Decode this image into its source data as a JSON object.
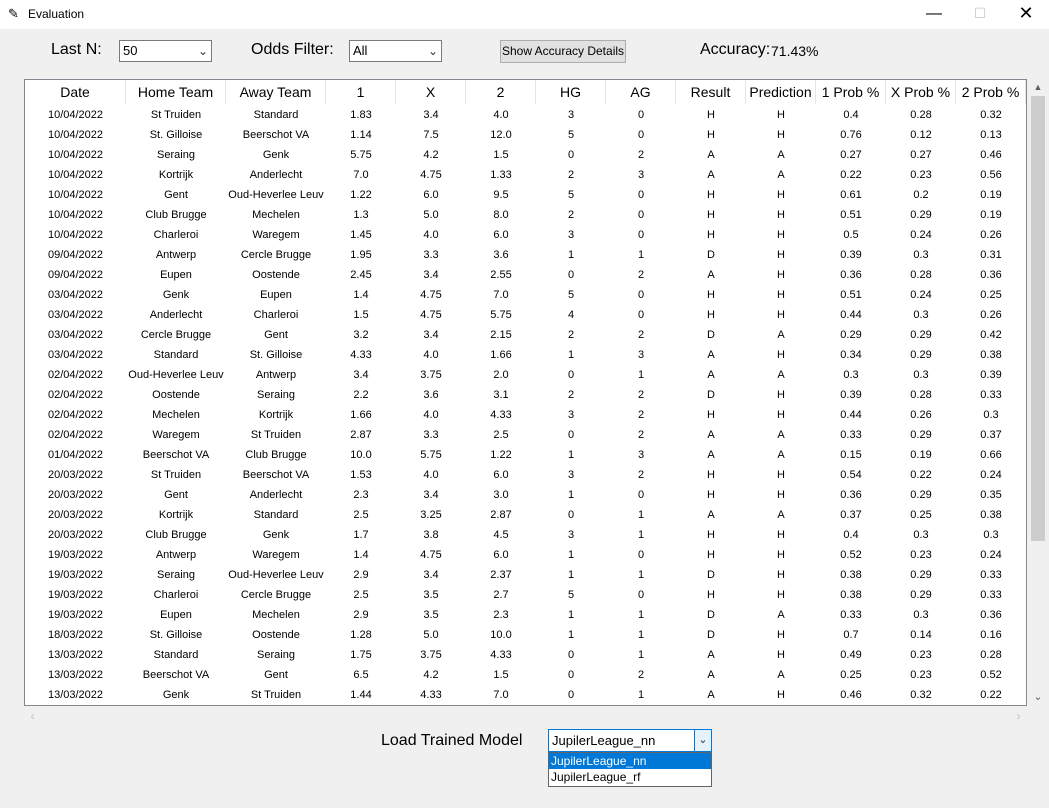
{
  "window": {
    "title": "Evaluation",
    "minimize": "—",
    "maximize": "☐",
    "close": "✕"
  },
  "controls": {
    "last_n_label": "Last N:",
    "last_n_value": "50",
    "odds_filter_label": "Odds Filter:",
    "odds_filter_value": "All",
    "accuracy_button": "Show Accuracy Details",
    "accuracy_label": "Accuracy:",
    "accuracy_value": "71.43%"
  },
  "table": {
    "columns": [
      "Date",
      "Home Team",
      "Away Team",
      "1",
      "X",
      "2",
      "HG",
      "AG",
      "Result",
      "Prediction",
      "1 Prob %",
      "X Prob %",
      "2 Prob %"
    ],
    "rows": [
      [
        "10/04/2022",
        "St Truiden",
        "Standard",
        "1.83",
        "3.4",
        "4.0",
        "3",
        "0",
        "H",
        "H",
        "0.4",
        "0.28",
        "0.32"
      ],
      [
        "10/04/2022",
        "St. Gilloise",
        "Beerschot VA",
        "1.14",
        "7.5",
        "12.0",
        "5",
        "0",
        "H",
        "H",
        "0.76",
        "0.12",
        "0.13"
      ],
      [
        "10/04/2022",
        "Seraing",
        "Genk",
        "5.75",
        "4.2",
        "1.5",
        "0",
        "2",
        "A",
        "A",
        "0.27",
        "0.27",
        "0.46"
      ],
      [
        "10/04/2022",
        "Kortrijk",
        "Anderlecht",
        "7.0",
        "4.75",
        "1.33",
        "2",
        "3",
        "A",
        "A",
        "0.22",
        "0.23",
        "0.56"
      ],
      [
        "10/04/2022",
        "Gent",
        "Oud-Heverlee Leuv",
        "1.22",
        "6.0",
        "9.5",
        "5",
        "0",
        "H",
        "H",
        "0.61",
        "0.2",
        "0.19"
      ],
      [
        "10/04/2022",
        "Club Brugge",
        "Mechelen",
        "1.3",
        "5.0",
        "8.0",
        "2",
        "0",
        "H",
        "H",
        "0.51",
        "0.29",
        "0.19"
      ],
      [
        "10/04/2022",
        "Charleroi",
        "Waregem",
        "1.45",
        "4.0",
        "6.0",
        "3",
        "0",
        "H",
        "H",
        "0.5",
        "0.24",
        "0.26"
      ],
      [
        "09/04/2022",
        "Antwerp",
        "Cercle Brugge",
        "1.95",
        "3.3",
        "3.6",
        "1",
        "1",
        "D",
        "H",
        "0.39",
        "0.3",
        "0.31"
      ],
      [
        "09/04/2022",
        "Eupen",
        "Oostende",
        "2.45",
        "3.4",
        "2.55",
        "0",
        "2",
        "A",
        "H",
        "0.36",
        "0.28",
        "0.36"
      ],
      [
        "03/04/2022",
        "Genk",
        "Eupen",
        "1.4",
        "4.75",
        "7.0",
        "5",
        "0",
        "H",
        "H",
        "0.51",
        "0.24",
        "0.25"
      ],
      [
        "03/04/2022",
        "Anderlecht",
        "Charleroi",
        "1.5",
        "4.75",
        "5.75",
        "4",
        "0",
        "H",
        "H",
        "0.44",
        "0.3",
        "0.26"
      ],
      [
        "03/04/2022",
        "Cercle Brugge",
        "Gent",
        "3.2",
        "3.4",
        "2.15",
        "2",
        "2",
        "D",
        "A",
        "0.29",
        "0.29",
        "0.42"
      ],
      [
        "03/04/2022",
        "Standard",
        "St. Gilloise",
        "4.33",
        "4.0",
        "1.66",
        "1",
        "3",
        "A",
        "H",
        "0.34",
        "0.29",
        "0.38"
      ],
      [
        "02/04/2022",
        "Oud-Heverlee Leuv",
        "Antwerp",
        "3.4",
        "3.75",
        "2.0",
        "0",
        "1",
        "A",
        "A",
        "0.3",
        "0.3",
        "0.39"
      ],
      [
        "02/04/2022",
        "Oostende",
        "Seraing",
        "2.2",
        "3.6",
        "3.1",
        "2",
        "2",
        "D",
        "H",
        "0.39",
        "0.28",
        "0.33"
      ],
      [
        "02/04/2022",
        "Mechelen",
        "Kortrijk",
        "1.66",
        "4.0",
        "4.33",
        "3",
        "2",
        "H",
        "H",
        "0.44",
        "0.26",
        "0.3"
      ],
      [
        "02/04/2022",
        "Waregem",
        "St Truiden",
        "2.87",
        "3.3",
        "2.5",
        "0",
        "2",
        "A",
        "A",
        "0.33",
        "0.29",
        "0.37"
      ],
      [
        "01/04/2022",
        "Beerschot VA",
        "Club Brugge",
        "10.0",
        "5.75",
        "1.22",
        "1",
        "3",
        "A",
        "A",
        "0.15",
        "0.19",
        "0.66"
      ],
      [
        "20/03/2022",
        "St Truiden",
        "Beerschot VA",
        "1.53",
        "4.0",
        "6.0",
        "3",
        "2",
        "H",
        "H",
        "0.54",
        "0.22",
        "0.24"
      ],
      [
        "20/03/2022",
        "Gent",
        "Anderlecht",
        "2.3",
        "3.4",
        "3.0",
        "1",
        "0",
        "H",
        "H",
        "0.36",
        "0.29",
        "0.35"
      ],
      [
        "20/03/2022",
        "Kortrijk",
        "Standard",
        "2.5",
        "3.25",
        "2.87",
        "0",
        "1",
        "A",
        "A",
        "0.37",
        "0.25",
        "0.38"
      ],
      [
        "20/03/2022",
        "Club Brugge",
        "Genk",
        "1.7",
        "3.8",
        "4.5",
        "3",
        "1",
        "H",
        "H",
        "0.4",
        "0.3",
        "0.3"
      ],
      [
        "19/03/2022",
        "Antwerp",
        "Waregem",
        "1.4",
        "4.75",
        "6.0",
        "1",
        "0",
        "H",
        "H",
        "0.52",
        "0.23",
        "0.24"
      ],
      [
        "19/03/2022",
        "Seraing",
        "Oud-Heverlee Leuv",
        "2.9",
        "3.4",
        "2.37",
        "1",
        "1",
        "D",
        "H",
        "0.38",
        "0.29",
        "0.33"
      ],
      [
        "19/03/2022",
        "Charleroi",
        "Cercle Brugge",
        "2.5",
        "3.5",
        "2.7",
        "5",
        "0",
        "H",
        "H",
        "0.38",
        "0.29",
        "0.33"
      ],
      [
        "19/03/2022",
        "Eupen",
        "Mechelen",
        "2.9",
        "3.5",
        "2.3",
        "1",
        "1",
        "D",
        "A",
        "0.33",
        "0.3",
        "0.36"
      ],
      [
        "18/03/2022",
        "St. Gilloise",
        "Oostende",
        "1.28",
        "5.0",
        "10.0",
        "1",
        "1",
        "D",
        "H",
        "0.7",
        "0.14",
        "0.16"
      ],
      [
        "13/03/2022",
        "Standard",
        "Seraing",
        "1.75",
        "3.75",
        "4.33",
        "0",
        "1",
        "A",
        "H",
        "0.49",
        "0.23",
        "0.28"
      ],
      [
        "13/03/2022",
        "Beerschot VA",
        "Gent",
        "6.5",
        "4.2",
        "1.5",
        "0",
        "2",
        "A",
        "A",
        "0.25",
        "0.23",
        "0.52"
      ],
      [
        "13/03/2022",
        "Genk",
        "St Truiden",
        "1.44",
        "4.33",
        "7.0",
        "0",
        "1",
        "A",
        "H",
        "0.46",
        "0.32",
        "0.22"
      ]
    ]
  },
  "model": {
    "label": "Load Trained Model",
    "selected": "JupilerLeague_nn",
    "options": [
      "JupilerLeague_nn",
      "JupilerLeague_rf"
    ]
  }
}
